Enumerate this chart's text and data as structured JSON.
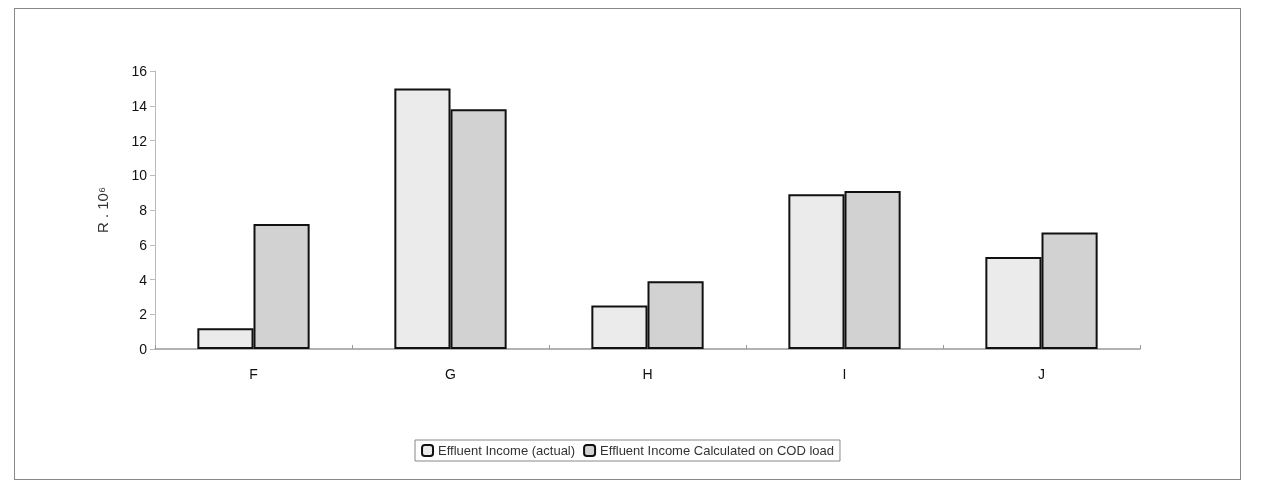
{
  "chart_data": {
    "type": "bar",
    "ylabel": "R . 10⁶",
    "categories": [
      "F",
      "G",
      "H",
      "I",
      "J"
    ],
    "series": [
      {
        "name": "Effluent Income (actual)",
        "color": "#ebebeb",
        "values": [
          1.2,
          15.0,
          2.5,
          8.9,
          5.3
        ]
      },
      {
        "name": "Effluent Income Calculated on COD load",
        "color": "#d2d2d2",
        "values": [
          7.2,
          13.8,
          3.9,
          9.1,
          6.7
        ]
      }
    ],
    "ylim": [
      0,
      16
    ],
    "yticks": [
      0,
      2,
      4,
      6,
      8,
      10,
      12,
      14,
      16
    ],
    "grid": false,
    "legend": "bottom"
  }
}
